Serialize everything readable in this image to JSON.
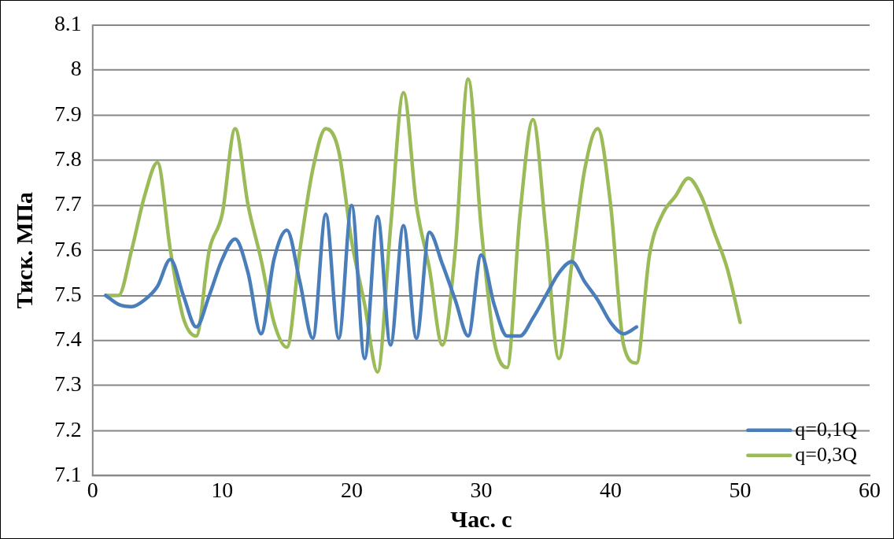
{
  "chart_data": {
    "type": "line",
    "xlabel": "Час. с",
    "ylabel": "Тиск. МПа",
    "x": [
      1,
      2,
      3,
      4,
      5,
      6,
      7,
      8,
      9,
      10,
      11,
      12,
      13,
      14,
      15,
      16,
      17,
      18,
      19,
      20,
      21,
      22,
      23,
      24,
      25,
      26,
      27,
      28,
      29,
      30,
      31,
      32,
      33,
      34,
      35,
      36,
      37,
      38,
      39,
      40,
      41,
      42,
      43,
      44,
      45,
      46,
      47,
      48,
      49,
      50
    ],
    "series": [
      {
        "name": "q=0,1Q",
        "color": "#4a7ebb",
        "x": [
          1,
          2,
          3,
          4,
          5,
          6,
          7,
          8,
          9,
          10,
          11,
          12,
          13,
          14,
          15,
          16,
          17,
          18,
          19,
          20,
          21,
          22,
          23,
          24,
          25,
          26,
          27,
          28,
          29,
          30,
          31,
          32,
          33,
          34,
          35,
          36,
          37,
          38,
          39,
          40,
          41,
          42
        ],
        "values": [
          7.5,
          7.48,
          7.475,
          7.49,
          7.52,
          7.58,
          7.5,
          7.43,
          7.5,
          7.58,
          7.625,
          7.55,
          7.415,
          7.58,
          7.645,
          7.53,
          7.405,
          7.68,
          7.405,
          7.7,
          7.36,
          7.675,
          7.39,
          7.655,
          7.405,
          7.64,
          7.57,
          7.49,
          7.41,
          7.59,
          7.48,
          7.41,
          7.41,
          7.45,
          7.5,
          7.55,
          7.575,
          7.53,
          7.49,
          7.44,
          7.415,
          7.43
        ]
      },
      {
        "name": "q=0,3Q",
        "color": "#9bbb59",
        "values": [
          7.5,
          7.5,
          7.6,
          7.72,
          7.795,
          7.6,
          7.45,
          7.41,
          7.6,
          7.68,
          7.87,
          7.7,
          7.58,
          7.44,
          7.385,
          7.6,
          7.78,
          7.87,
          7.82,
          7.62,
          7.48,
          7.33,
          7.65,
          7.95,
          7.7,
          7.56,
          7.39,
          7.6,
          7.98,
          7.65,
          7.4,
          7.34,
          7.68,
          7.89,
          7.64,
          7.36,
          7.57,
          7.78,
          7.87,
          7.7,
          7.39,
          7.35,
          7.59,
          7.68,
          7.72,
          7.76,
          7.72,
          7.64,
          7.56,
          7.44
        ]
      }
    ],
    "xlim": [
      0,
      60
    ],
    "xticks": [
      0,
      10,
      20,
      30,
      40,
      50,
      60
    ],
    "ylim": [
      7.1,
      8.1
    ],
    "yticks": [
      7.1,
      7.2,
      7.3,
      7.4,
      7.5,
      7.6,
      7.7,
      7.8,
      7.9,
      8,
      8.1
    ],
    "grid": "y",
    "legend": "bottom right",
    "marker": "none",
    "line_style": "solid"
  }
}
